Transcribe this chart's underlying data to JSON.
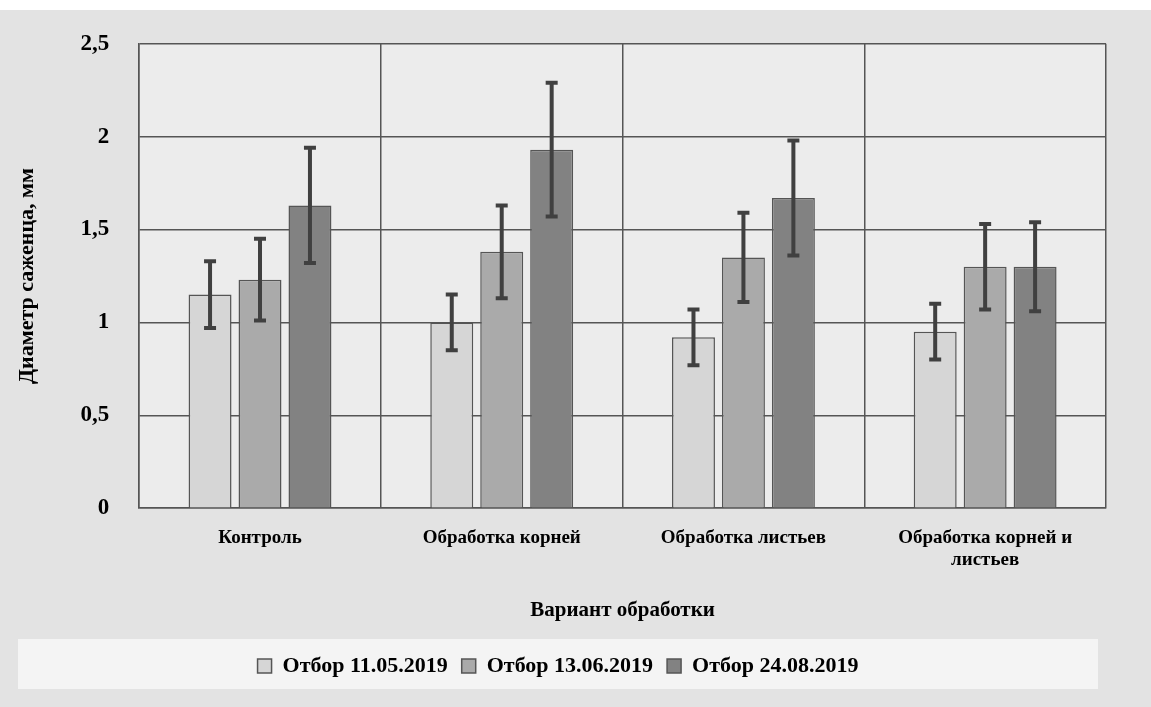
{
  "chart_data": {
    "type": "bar",
    "xlabel": "Вариант обработки",
    "ylabel": "Диаметр саженца, мм",
    "categories": [
      "Контроль",
      "Обработка корней",
      "Обработка листьев",
      "Обработка корней и листьев"
    ],
    "series": [
      {
        "name": "Отбор 11.05.2019",
        "color": "#d6d6d6",
        "values": [
          1.15,
          1.0,
          0.92,
          0.95
        ],
        "errors": [
          0.18,
          0.15,
          0.15,
          0.15
        ]
      },
      {
        "name": "Отбор 13.06.2019",
        "color": "#aaaaaa",
        "values": [
          1.23,
          1.38,
          1.35,
          1.3
        ],
        "errors": [
          0.22,
          0.25,
          0.24,
          0.23
        ]
      },
      {
        "name": "Отбор 24.08.2019",
        "color": "#828282",
        "values": [
          1.63,
          1.93,
          1.67,
          1.3
        ],
        "errors": [
          0.31,
          0.36,
          0.31,
          0.24
        ]
      }
    ],
    "ylim": [
      0,
      2.5
    ],
    "yticks": [
      {
        "value": 0,
        "label": "0"
      },
      {
        "value": 0.5,
        "label": "0,5"
      },
      {
        "value": 1,
        "label": "1"
      },
      {
        "value": 1.5,
        "label": "1,5"
      },
      {
        "value": 2,
        "label": "2"
      },
      {
        "value": 2.5,
        "label": "2,5"
      }
    ],
    "grid": true,
    "legend": "bottom"
  }
}
